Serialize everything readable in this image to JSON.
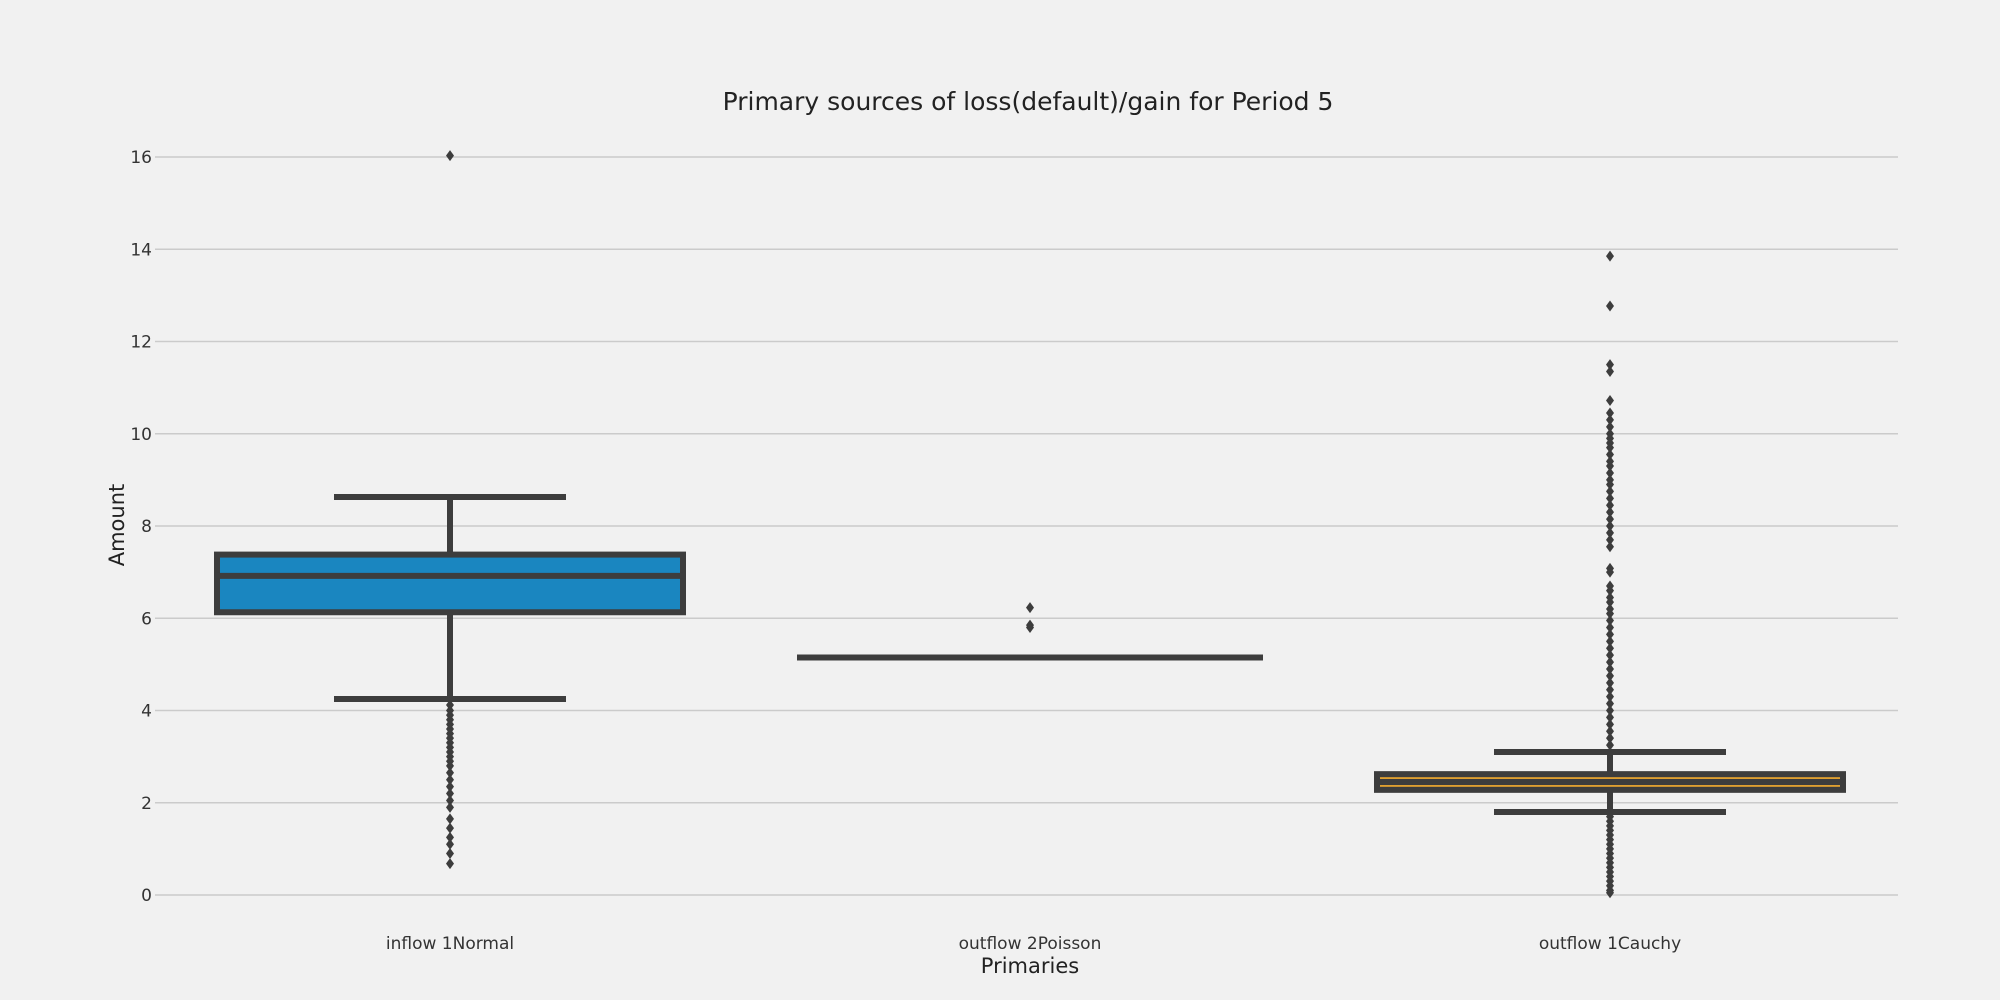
{
  "chart_data": {
    "type": "box",
    "title": "Primary sources of loss(default)/gain for Period 5",
    "xlabel": "Primaries",
    "ylabel": "Amount",
    "ylim": [
      -0.6,
      16.6
    ],
    "yticks": [
      0,
      2,
      4,
      6,
      8,
      10,
      12,
      14,
      16
    ],
    "grid": "horizontal",
    "categories": [
      "inflow 1Normal",
      "outflow 2Poisson",
      "outflow 1Cauchy"
    ],
    "boxes": [
      {
        "name": "inflow 1Normal",
        "whisker_low": 4.25,
        "q1": 6.13,
        "median": 6.92,
        "q3": 7.38,
        "whisker_high": 8.63,
        "color": "#1a86c0",
        "outliers": [
          16.03,
          4.12,
          4.0,
          3.9,
          3.8,
          3.7,
          3.6,
          3.5,
          3.4,
          3.3,
          3.2,
          3.1,
          3.0,
          2.9,
          2.8,
          2.65,
          2.5,
          2.35,
          2.2,
          2.05,
          1.9,
          1.65,
          1.45,
          1.25,
          1.1,
          0.9,
          0.68
        ]
      },
      {
        "name": "outflow 2Poisson",
        "whisker_low": 5.15,
        "q1": 5.15,
        "median": 5.15,
        "q3": 5.15,
        "whisker_high": 5.15,
        "color": "#1a86c0",
        "outliers": [
          6.23,
          5.85,
          5.8
        ]
      },
      {
        "name": "outflow 1Cauchy",
        "whisker_low": 1.8,
        "q1": 2.28,
        "median": 2.45,
        "q3": 2.62,
        "whisker_high": 3.1,
        "color": "#e0a030",
        "outliers": [
          13.85,
          12.77,
          11.5,
          11.35,
          10.72,
          10.45,
          10.3,
          10.15,
          10.0,
          9.9,
          9.8,
          9.7,
          9.55,
          9.4,
          9.3,
          9.15,
          9.0,
          8.9,
          8.75,
          8.6,
          8.45,
          8.3,
          8.15,
          8.0,
          7.85,
          7.7,
          7.55,
          7.08,
          7.0,
          6.7,
          6.6,
          6.45,
          6.35,
          6.2,
          6.1,
          5.95,
          5.8,
          5.65,
          5.5,
          5.35,
          5.2,
          5.05,
          4.9,
          4.75,
          4.6,
          4.45,
          4.3,
          4.15,
          4.0,
          3.85,
          3.7,
          3.55,
          3.4,
          3.25,
          1.7,
          1.6,
          1.5,
          1.4,
          1.3,
          1.2,
          1.1,
          1.0,
          0.9,
          0.8,
          0.7,
          0.6,
          0.5,
          0.4,
          0.3,
          0.2,
          0.1,
          0.05
        ]
      }
    ],
    "colors": {
      "background": "#f1f1f1",
      "grid": "#cbcbcb",
      "line": "#3d3d3d"
    }
  }
}
